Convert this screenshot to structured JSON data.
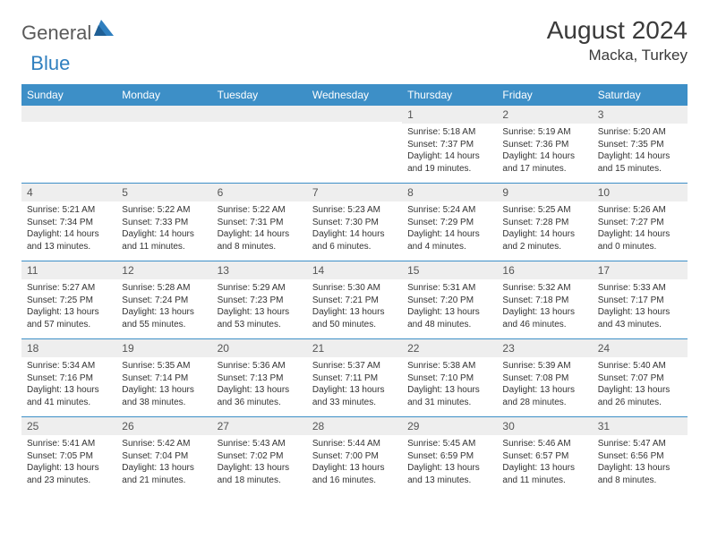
{
  "logo": {
    "general": "General",
    "blue": "Blue"
  },
  "header": {
    "month": "August 2024",
    "location": "Macka, Turkey"
  },
  "colors": {
    "header_bar": "#3d8fc7",
    "daynum_bg": "#eeeeee",
    "text": "#333333",
    "logo_gray": "#5a5a5a",
    "logo_blue": "#2f7fbf"
  },
  "weekdays": [
    "Sunday",
    "Monday",
    "Tuesday",
    "Wednesday",
    "Thursday",
    "Friday",
    "Saturday"
  ],
  "weeks": [
    [
      {
        "n": "",
        "sr": "",
        "ss": "",
        "dl": ""
      },
      {
        "n": "",
        "sr": "",
        "ss": "",
        "dl": ""
      },
      {
        "n": "",
        "sr": "",
        "ss": "",
        "dl": ""
      },
      {
        "n": "",
        "sr": "",
        "ss": "",
        "dl": ""
      },
      {
        "n": "1",
        "sr": "Sunrise: 5:18 AM",
        "ss": "Sunset: 7:37 PM",
        "dl": "Daylight: 14 hours and 19 minutes."
      },
      {
        "n": "2",
        "sr": "Sunrise: 5:19 AM",
        "ss": "Sunset: 7:36 PM",
        "dl": "Daylight: 14 hours and 17 minutes."
      },
      {
        "n": "3",
        "sr": "Sunrise: 5:20 AM",
        "ss": "Sunset: 7:35 PM",
        "dl": "Daylight: 14 hours and 15 minutes."
      }
    ],
    [
      {
        "n": "4",
        "sr": "Sunrise: 5:21 AM",
        "ss": "Sunset: 7:34 PM",
        "dl": "Daylight: 14 hours and 13 minutes."
      },
      {
        "n": "5",
        "sr": "Sunrise: 5:22 AM",
        "ss": "Sunset: 7:33 PM",
        "dl": "Daylight: 14 hours and 11 minutes."
      },
      {
        "n": "6",
        "sr": "Sunrise: 5:22 AM",
        "ss": "Sunset: 7:31 PM",
        "dl": "Daylight: 14 hours and 8 minutes."
      },
      {
        "n": "7",
        "sr": "Sunrise: 5:23 AM",
        "ss": "Sunset: 7:30 PM",
        "dl": "Daylight: 14 hours and 6 minutes."
      },
      {
        "n": "8",
        "sr": "Sunrise: 5:24 AM",
        "ss": "Sunset: 7:29 PM",
        "dl": "Daylight: 14 hours and 4 minutes."
      },
      {
        "n": "9",
        "sr": "Sunrise: 5:25 AM",
        "ss": "Sunset: 7:28 PM",
        "dl": "Daylight: 14 hours and 2 minutes."
      },
      {
        "n": "10",
        "sr": "Sunrise: 5:26 AM",
        "ss": "Sunset: 7:27 PM",
        "dl": "Daylight: 14 hours and 0 minutes."
      }
    ],
    [
      {
        "n": "11",
        "sr": "Sunrise: 5:27 AM",
        "ss": "Sunset: 7:25 PM",
        "dl": "Daylight: 13 hours and 57 minutes."
      },
      {
        "n": "12",
        "sr": "Sunrise: 5:28 AM",
        "ss": "Sunset: 7:24 PM",
        "dl": "Daylight: 13 hours and 55 minutes."
      },
      {
        "n": "13",
        "sr": "Sunrise: 5:29 AM",
        "ss": "Sunset: 7:23 PM",
        "dl": "Daylight: 13 hours and 53 minutes."
      },
      {
        "n": "14",
        "sr": "Sunrise: 5:30 AM",
        "ss": "Sunset: 7:21 PM",
        "dl": "Daylight: 13 hours and 50 minutes."
      },
      {
        "n": "15",
        "sr": "Sunrise: 5:31 AM",
        "ss": "Sunset: 7:20 PM",
        "dl": "Daylight: 13 hours and 48 minutes."
      },
      {
        "n": "16",
        "sr": "Sunrise: 5:32 AM",
        "ss": "Sunset: 7:18 PM",
        "dl": "Daylight: 13 hours and 46 minutes."
      },
      {
        "n": "17",
        "sr": "Sunrise: 5:33 AM",
        "ss": "Sunset: 7:17 PM",
        "dl": "Daylight: 13 hours and 43 minutes."
      }
    ],
    [
      {
        "n": "18",
        "sr": "Sunrise: 5:34 AM",
        "ss": "Sunset: 7:16 PM",
        "dl": "Daylight: 13 hours and 41 minutes."
      },
      {
        "n": "19",
        "sr": "Sunrise: 5:35 AM",
        "ss": "Sunset: 7:14 PM",
        "dl": "Daylight: 13 hours and 38 minutes."
      },
      {
        "n": "20",
        "sr": "Sunrise: 5:36 AM",
        "ss": "Sunset: 7:13 PM",
        "dl": "Daylight: 13 hours and 36 minutes."
      },
      {
        "n": "21",
        "sr": "Sunrise: 5:37 AM",
        "ss": "Sunset: 7:11 PM",
        "dl": "Daylight: 13 hours and 33 minutes."
      },
      {
        "n": "22",
        "sr": "Sunrise: 5:38 AM",
        "ss": "Sunset: 7:10 PM",
        "dl": "Daylight: 13 hours and 31 minutes."
      },
      {
        "n": "23",
        "sr": "Sunrise: 5:39 AM",
        "ss": "Sunset: 7:08 PM",
        "dl": "Daylight: 13 hours and 28 minutes."
      },
      {
        "n": "24",
        "sr": "Sunrise: 5:40 AM",
        "ss": "Sunset: 7:07 PM",
        "dl": "Daylight: 13 hours and 26 minutes."
      }
    ],
    [
      {
        "n": "25",
        "sr": "Sunrise: 5:41 AM",
        "ss": "Sunset: 7:05 PM",
        "dl": "Daylight: 13 hours and 23 minutes."
      },
      {
        "n": "26",
        "sr": "Sunrise: 5:42 AM",
        "ss": "Sunset: 7:04 PM",
        "dl": "Daylight: 13 hours and 21 minutes."
      },
      {
        "n": "27",
        "sr": "Sunrise: 5:43 AM",
        "ss": "Sunset: 7:02 PM",
        "dl": "Daylight: 13 hours and 18 minutes."
      },
      {
        "n": "28",
        "sr": "Sunrise: 5:44 AM",
        "ss": "Sunset: 7:00 PM",
        "dl": "Daylight: 13 hours and 16 minutes."
      },
      {
        "n": "29",
        "sr": "Sunrise: 5:45 AM",
        "ss": "Sunset: 6:59 PM",
        "dl": "Daylight: 13 hours and 13 minutes."
      },
      {
        "n": "30",
        "sr": "Sunrise: 5:46 AM",
        "ss": "Sunset: 6:57 PM",
        "dl": "Daylight: 13 hours and 11 minutes."
      },
      {
        "n": "31",
        "sr": "Sunrise: 5:47 AM",
        "ss": "Sunset: 6:56 PM",
        "dl": "Daylight: 13 hours and 8 minutes."
      }
    ]
  ]
}
